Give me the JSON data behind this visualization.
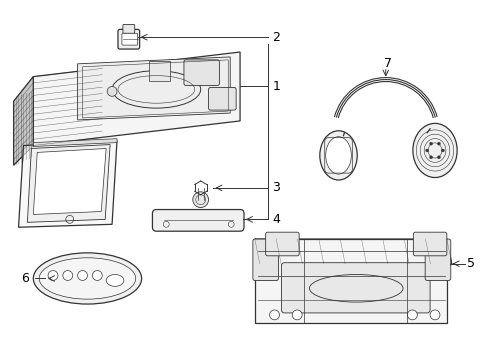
{
  "background_color": "#ffffff",
  "line_color": "#333333",
  "text_color": "#000000",
  "lw": 0.9
}
